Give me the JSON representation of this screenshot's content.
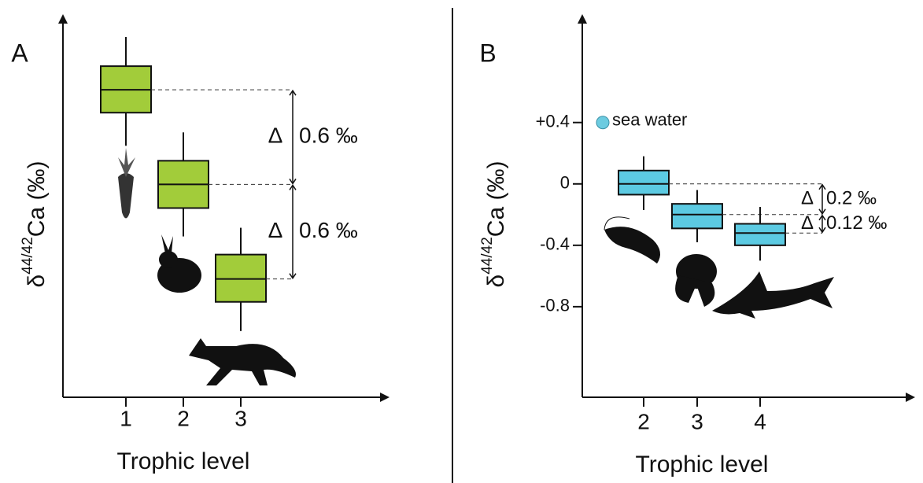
{
  "chart_data": [
    {
      "type": "box",
      "panel": "A",
      "y_label": {
        "base": "δ",
        "sup": "44/42",
        "rest": "Ca (‰)"
      },
      "x_label": "Trophic level",
      "categories": [
        "1",
        "2",
        "3"
      ],
      "color": "#a2cc3a",
      "ylim": [
        -1.95,
        0.42
      ],
      "boxes": [
        {
          "whisker_low": -0.355,
          "q1": -0.145,
          "median": 0,
          "q3": 0.15,
          "whisker_high": 0.335
        },
        {
          "whisker_low": -0.93,
          "q1": -0.75,
          "median": -0.6,
          "q3": -0.45,
          "whisker_high": -0.27
        },
        {
          "whisker_low": -1.53,
          "q1": -1.345,
          "median": -1.2,
          "q3": -1.045,
          "whisker_high": -0.875
        }
      ],
      "annotations": [
        {
          "symbol": "Δ",
          "label": "0.6 ‰"
        },
        {
          "symbol": "Δ",
          "label": "0.6 ‰"
        }
      ]
    },
    {
      "type": "box",
      "panel": "B",
      "y_label": {
        "base": "δ",
        "sup": "44/42",
        "rest": "Ca (‰)"
      },
      "x_label": "Trophic level",
      "categories": [
        "2",
        "3",
        "4"
      ],
      "color": "#5ccae2",
      "ylim": [
        -1.39,
        1.07
      ],
      "yticks": [
        {
          "value": 0.4,
          "label": "+0.4"
        },
        0,
        -0.4,
        -0.8
      ],
      "boxes": [
        {
          "whisker_low": -0.17,
          "q1": -0.07,
          "median": 0,
          "q3": 0.087,
          "whisker_high": 0.18
        },
        {
          "whisker_low": -0.38,
          "q1": -0.29,
          "median": -0.2,
          "q3": -0.13,
          "whisker_high": -0.04
        },
        {
          "whisker_low": -0.5,
          "q1": -0.4,
          "median": -0.32,
          "q3": -0.26,
          "whisker_high": -0.15
        }
      ],
      "reference_point": {
        "label": "sea water",
        "value": 0.4,
        "color": "#6ccbe0"
      },
      "annotations": [
        {
          "symbol": "Δ",
          "label": "0.2 ‰"
        },
        {
          "symbol": "Δ",
          "label": "0.12 ‰"
        }
      ]
    }
  ]
}
